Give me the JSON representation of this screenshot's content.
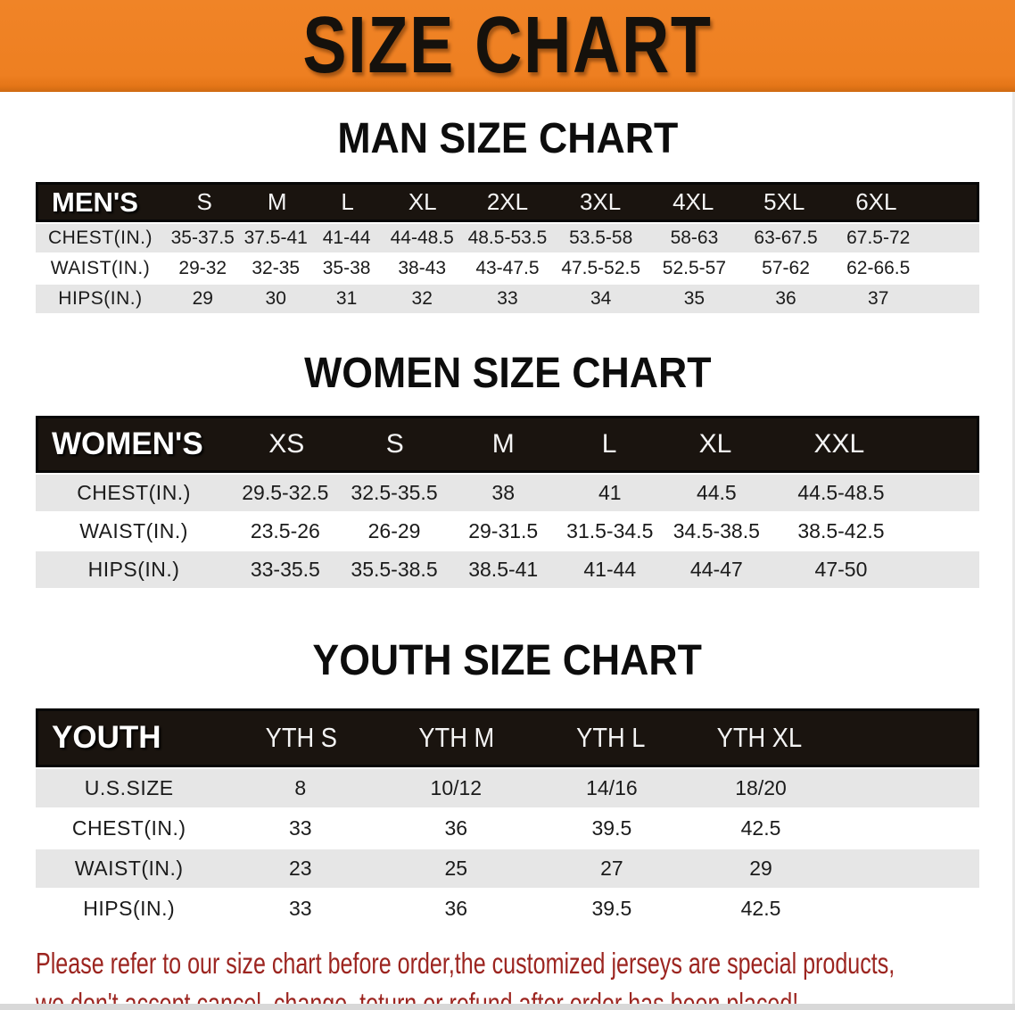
{
  "banner": {
    "title": "SIZE CHART"
  },
  "sections": [
    {
      "heading": "MAN SIZE CHART",
      "table": {
        "label": "MEN'S",
        "columns": [
          "S",
          "M",
          "L",
          "XL",
          "2XL",
          "3XL",
          "4XL",
          "5XL",
          "6XL"
        ],
        "rows": [
          {
            "label": "CHEST(IN.)",
            "values": [
              "35-37.5",
              "37.5-41",
              "41-44",
              "44-48.5",
              "48.5-53.5",
              "53.5-58",
              "58-63",
              "63-67.5",
              "67.5-72"
            ]
          },
          {
            "label": "WAIST(IN.)",
            "values": [
              "29-32",
              "32-35",
              "35-38",
              "38-43",
              "43-47.5",
              "47.5-52.5",
              "52.5-57",
              "57-62",
              "62-66.5"
            ]
          },
          {
            "label": "HIPS(IN.)",
            "values": [
              "29",
              "30",
              "31",
              "32",
              "33",
              "34",
              "35",
              "36",
              "37"
            ]
          }
        ]
      }
    },
    {
      "heading": "WOMEN SIZE CHART",
      "table": {
        "label": "WOMEN'S",
        "columns": [
          "XS",
          "S",
          "M",
          "L",
          "XL",
          "XXL"
        ],
        "rows": [
          {
            "label": "CHEST(IN.)",
            "values": [
              "29.5-32.5",
              "32.5-35.5",
              "38",
              "41",
              "44.5",
              "44.5-48.5"
            ]
          },
          {
            "label": "WAIST(IN.)",
            "values": [
              "23.5-26",
              "26-29",
              "29-31.5",
              "31.5-34.5",
              "34.5-38.5",
              "38.5-42.5"
            ]
          },
          {
            "label": "HIPS(IN.)",
            "values": [
              "33-35.5",
              "35.5-38.5",
              "38.5-41",
              "41-44",
              "44-47",
              "47-50"
            ]
          }
        ]
      }
    },
    {
      "heading": "YOUTH SIZE CHART",
      "table": {
        "label": "YOUTH",
        "columns": [
          "YTH S",
          "YTH M",
          "YTH L",
          "YTH XL"
        ],
        "rows": [
          {
            "label": "U.S.SIZE",
            "values": [
              "8",
              "10/12",
              "14/16",
              "18/20"
            ]
          },
          {
            "label": "CHEST(IN.)",
            "values": [
              "33",
              "36",
              "39.5",
              "42.5"
            ]
          },
          {
            "label": "WAIST(IN.)",
            "values": [
              "23",
              "25",
              "27",
              "29"
            ]
          },
          {
            "label": "HIPS(IN.)",
            "values": [
              "33",
              "36",
              "39.5",
              "42.5"
            ]
          }
        ]
      }
    }
  ],
  "footer": {
    "line1": "Please refer to our size chart before order,the customized jerseys are special products,",
    "line2": "we don't accept cancel, change, teturn or refund after order has been placed!"
  },
  "colors": {
    "banner_bg": "#ee7f21",
    "banner_text": "#15110c",
    "header_bar_bg": "#1a140f",
    "row_stripe": "#e6e6e6",
    "disclaimer_text": "#9c2520"
  }
}
